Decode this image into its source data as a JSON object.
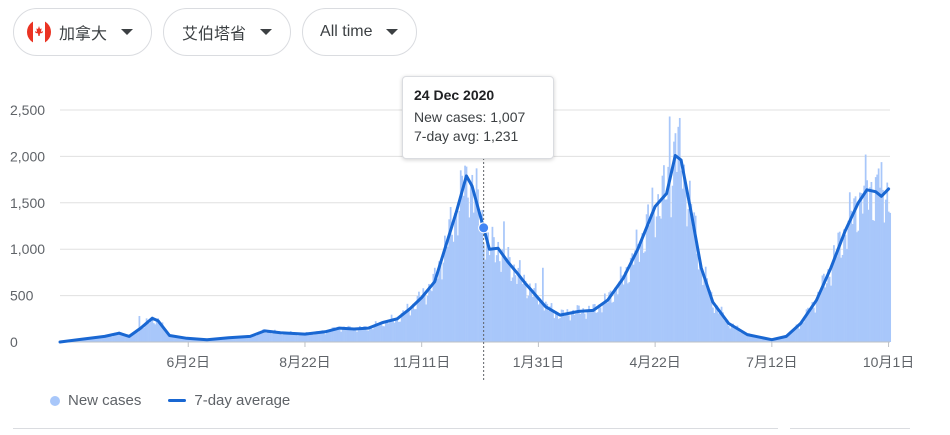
{
  "filters": {
    "country": "加拿大",
    "region": "艾伯塔省",
    "range": "All time"
  },
  "tooltip": {
    "date": "24 Dec 2020",
    "new_cases": "New cases: 1,007",
    "avg": "7-day avg: 1,231"
  },
  "legend": {
    "new_cases": "New cases",
    "average": "7-day average"
  },
  "colors": {
    "bars": "#a8c7fa",
    "line": "#1967d2",
    "flag_red": "#ea3323"
  },
  "chart_data": {
    "type": "bar",
    "ylim": [
      0,
      2500
    ],
    "yticks": [
      "0",
      "500",
      "1,000",
      "1,500",
      "2,000",
      "2,500"
    ],
    "ytick_values": [
      0,
      500,
      1000,
      1500,
      2000,
      2500
    ],
    "xlim": [
      "2020-03-05",
      "2021-10-02"
    ],
    "xticks": [
      {
        "label": "6月2日",
        "date": "2020-06-02"
      },
      {
        "label": "8月22日",
        "date": "2020-08-22"
      },
      {
        "label": "11月11日",
        "date": "2020-11-11"
      },
      {
        "label": "1月31日",
        "date": "2021-01-31"
      },
      {
        "label": "4月22日",
        "date": "2021-04-22"
      },
      {
        "label": "7月12日",
        "date": "2021-07-12"
      },
      {
        "label": "10月1日",
        "date": "2021-10-01"
      }
    ],
    "highlight": {
      "date": "2020-12-24",
      "new_cases": 1007,
      "avg": 1231
    },
    "series": [
      {
        "name": "7-day average",
        "style": "line",
        "points": [
          [
            "2020-03-05",
            0
          ],
          [
            "2020-03-20",
            30
          ],
          [
            "2020-04-05",
            60
          ],
          [
            "2020-04-15",
            95
          ],
          [
            "2020-04-22",
            60
          ],
          [
            "2020-04-30",
            150
          ],
          [
            "2020-05-08",
            255
          ],
          [
            "2020-05-12",
            230
          ],
          [
            "2020-05-20",
            70
          ],
          [
            "2020-06-01",
            40
          ],
          [
            "2020-06-15",
            25
          ],
          [
            "2020-06-30",
            45
          ],
          [
            "2020-07-15",
            60
          ],
          [
            "2020-07-25",
            120
          ],
          [
            "2020-08-05",
            100
          ],
          [
            "2020-08-22",
            85
          ],
          [
            "2020-09-05",
            110
          ],
          [
            "2020-09-15",
            150
          ],
          [
            "2020-09-25",
            140
          ],
          [
            "2020-10-05",
            150
          ],
          [
            "2020-10-15",
            210
          ],
          [
            "2020-10-25",
            250
          ],
          [
            "2020-11-03",
            360
          ],
          [
            "2020-11-11",
            480
          ],
          [
            "2020-11-20",
            650
          ],
          [
            "2020-11-28",
            1050
          ],
          [
            "2020-12-05",
            1400
          ],
          [
            "2020-12-12",
            1790
          ],
          [
            "2020-12-16",
            1680
          ],
          [
            "2020-12-20",
            1450
          ],
          [
            "2020-12-24",
            1231
          ],
          [
            "2020-12-28",
            1000
          ],
          [
            "2021-01-03",
            1010
          ],
          [
            "2021-01-10",
            860
          ],
          [
            "2021-01-17",
            730
          ],
          [
            "2021-01-22",
            630
          ],
          [
            "2021-01-26",
            560
          ],
          [
            "2021-01-31",
            470
          ],
          [
            "2021-02-05",
            380
          ],
          [
            "2021-02-15",
            290
          ],
          [
            "2021-02-28",
            330
          ],
          [
            "2021-03-10",
            340
          ],
          [
            "2021-03-20",
            450
          ],
          [
            "2021-03-31",
            690
          ],
          [
            "2021-04-10",
            1000
          ],
          [
            "2021-04-22",
            1460
          ],
          [
            "2021-04-30",
            1600
          ],
          [
            "2021-05-06",
            2010
          ],
          [
            "2021-05-10",
            1960
          ],
          [
            "2021-05-17",
            1400
          ],
          [
            "2021-05-24",
            800
          ],
          [
            "2021-06-01",
            430
          ],
          [
            "2021-06-12",
            200
          ],
          [
            "2021-06-25",
            80
          ],
          [
            "2021-07-12",
            25
          ],
          [
            "2021-07-22",
            60
          ],
          [
            "2021-08-01",
            200
          ],
          [
            "2021-08-12",
            450
          ],
          [
            "2021-08-22",
            800
          ],
          [
            "2021-09-01",
            1200
          ],
          [
            "2021-09-10",
            1500
          ],
          [
            "2021-09-16",
            1640
          ],
          [
            "2021-09-22",
            1620
          ],
          [
            "2021-09-26",
            1570
          ],
          [
            "2021-10-01",
            1650
          ]
        ]
      },
      {
        "name": "New cases",
        "style": "bars",
        "peaks": [
          [
            "2020-04-29",
            280
          ],
          [
            "2020-12-08",
            1850
          ],
          [
            "2020-12-12",
            1890
          ],
          [
            "2020-12-16",
            1800
          ],
          [
            "2021-01-07",
            1300
          ],
          [
            "2021-02-03",
            800
          ],
          [
            "2021-05-02",
            2430
          ],
          [
            "2021-05-06",
            2250
          ],
          [
            "2021-09-15",
            2020
          ],
          [
            "2021-09-24",
            1870
          ]
        ]
      }
    ]
  }
}
